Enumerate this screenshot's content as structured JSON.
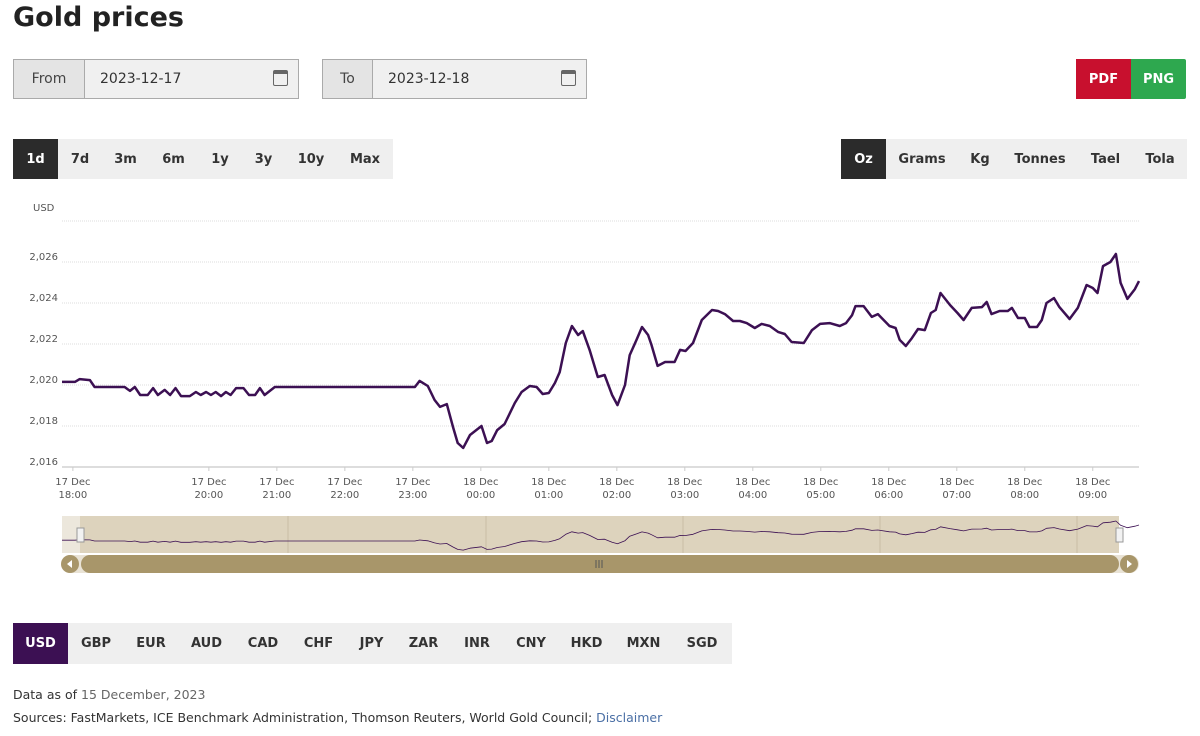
{
  "header": {
    "title": "Gold prices"
  },
  "date_range": {
    "from_label": "From",
    "from": "2023-12-17",
    "to_label": "To",
    "to": "2023-12-18"
  },
  "export": [
    "PDF",
    "PNG"
  ],
  "periods": {
    "options": [
      "1d",
      "7d",
      "3m",
      "6m",
      "1y",
      "3y",
      "10y",
      "Max"
    ],
    "selected": 0
  },
  "units": {
    "options": [
      "Oz",
      "Grams",
      "Kg",
      "Tonnes",
      "Tael",
      "Tola"
    ],
    "selected": 0
  },
  "chart_data": {
    "type": "line",
    "y_label": "USD",
    "color": "#3c1053",
    "grid": true,
    "xlim": [
      17.84,
      33.68
    ],
    "xticks": [
      {
        "value": 18,
        "label": "17 Dec 18:00"
      },
      {
        "value": 20,
        "label": "17 Dec 20:00"
      },
      {
        "value": 21,
        "label": "17 Dec 21:00"
      },
      {
        "value": 22,
        "label": "17 Dec 22:00"
      },
      {
        "value": 23,
        "label": "17 Dec 23:00"
      },
      {
        "value": 24,
        "label": "18 Dec 00:00"
      },
      {
        "value": 25,
        "label": "18 Dec 01:00"
      },
      {
        "value": 26,
        "label": "18 Dec 02:00"
      },
      {
        "value": 27,
        "label": "18 Dec 03:00"
      },
      {
        "value": 28,
        "label": "18 Dec 04:00"
      },
      {
        "value": 29,
        "label": "18 Dec 05:00"
      },
      {
        "value": 30,
        "label": "18 Dec 06:00"
      },
      {
        "value": 31,
        "label": "18 Dec 07:00"
      },
      {
        "value": 32,
        "label": "18 Dec 08:00"
      },
      {
        "value": 33,
        "label": "18 Dec 09:00"
      }
    ],
    "ylim": [
      2016,
      2028
    ],
    "yticks": [
      {
        "value": 2016,
        "label": "2,016"
      },
      {
        "value": 2018,
        "label": "2,018"
      },
      {
        "value": 2020,
        "label": "2,020"
      },
      {
        "value": 2022,
        "label": "2,022"
      },
      {
        "value": 2024,
        "label": "2,024"
      },
      {
        "value": 2026,
        "label": "2,026"
      }
    ],
    "x": [
      17.84,
      18.03,
      18.1,
      18.25,
      18.32,
      18.76,
      18.84,
      18.91,
      18.99,
      19.1,
      19.18,
      19.25,
      19.35,
      19.43,
      19.51,
      19.59,
      19.72,
      19.81,
      19.88,
      19.96,
      20.03,
      20.1,
      20.18,
      20.25,
      20.32,
      20.4,
      20.51,
      20.59,
      20.68,
      20.75,
      20.82,
      20.97,
      23.03,
      23.1,
      23.22,
      23.32,
      23.4,
      23.5,
      23.59,
      23.66,
      23.74,
      23.84,
      24.01,
      24.09,
      24.16,
      24.24,
      24.35,
      24.5,
      24.6,
      24.72,
      24.82,
      24.91,
      25.0,
      25.09,
      25.16,
      25.25,
      25.34,
      25.43,
      25.5,
      25.6,
      25.72,
      25.82,
      25.93,
      26.01,
      26.12,
      26.19,
      26.29,
      26.37,
      26.46,
      26.51,
      26.6,
      26.71,
      26.85,
      26.93,
      27.01,
      27.12,
      27.25,
      27.4,
      27.49,
      27.59,
      27.71,
      27.81,
      27.91,
      28.03,
      28.13,
      28.25,
      28.37,
      28.47,
      28.57,
      28.75,
      28.87,
      28.99,
      29.13,
      29.28,
      29.37,
      29.46,
      29.51,
      29.63,
      29.75,
      29.84,
      30.01,
      30.1,
      30.16,
      30.25,
      30.34,
      30.43,
      30.53,
      30.62,
      30.69,
      30.76,
      30.9,
      31.01,
      31.1,
      31.22,
      31.37,
      31.44,
      31.51,
      31.63,
      31.75,
      31.81,
      31.9,
      32.0,
      32.07,
      32.18,
      32.25,
      32.32,
      32.43,
      32.51,
      32.66,
      32.78,
      32.91,
      33.0,
      33.07,
      33.15,
      33.26,
      33.34,
      33.41,
      33.51,
      33.62,
      33.68
    ],
    "values": [
      2020.15,
      2020.15,
      2020.29,
      2020.24,
      2019.9,
      2019.9,
      2019.71,
      2019.9,
      2019.51,
      2019.51,
      2019.85,
      2019.51,
      2019.76,
      2019.51,
      2019.85,
      2019.46,
      2019.46,
      2019.66,
      2019.51,
      2019.66,
      2019.51,
      2019.66,
      2019.46,
      2019.66,
      2019.51,
      2019.85,
      2019.85,
      2019.51,
      2019.51,
      2019.85,
      2019.51,
      2019.9,
      2019.9,
      2020.2,
      2019.95,
      2019.27,
      2018.93,
      2019.07,
      2017.95,
      2017.17,
      2016.93,
      2017.56,
      2018.0,
      2017.17,
      2017.27,
      2017.8,
      2018.1,
      2019.12,
      2019.66,
      2019.95,
      2019.9,
      2019.56,
      2019.61,
      2020.1,
      2020.63,
      2022.05,
      2022.88,
      2022.44,
      2022.63,
      2021.71,
      2020.39,
      2020.49,
      2019.51,
      2019.02,
      2020.0,
      2021.46,
      2022.2,
      2022.83,
      2022.44,
      2021.95,
      2020.93,
      2021.12,
      2021.12,
      2021.71,
      2021.66,
      2022.05,
      2023.17,
      2023.66,
      2023.61,
      2023.46,
      2023.12,
      2023.12,
      2023.02,
      2022.78,
      2022.98,
      2022.88,
      2022.59,
      2022.49,
      2022.1,
      2022.05,
      2022.68,
      2022.98,
      2023.02,
      2022.88,
      2023.02,
      2023.41,
      2023.85,
      2023.85,
      2023.32,
      2023.46,
      2022.88,
      2022.78,
      2022.2,
      2021.9,
      2022.29,
      2022.73,
      2022.68,
      2023.51,
      2023.66,
      2024.49,
      2023.9,
      2023.51,
      2023.17,
      2023.76,
      2023.8,
      2024.05,
      2023.46,
      2023.61,
      2023.61,
      2023.76,
      2023.27,
      2023.27,
      2022.83,
      2022.83,
      2023.17,
      2024.0,
      2024.24,
      2023.8,
      2023.22,
      2023.76,
      2024.88,
      2024.73,
      2024.49,
      2025.8,
      2026.0,
      2026.39,
      2024.98,
      2024.2,
      2024.68,
      2025.07
    ]
  },
  "currencies": {
    "options": [
      "USD",
      "GBP",
      "EUR",
      "AUD",
      "CAD",
      "CHF",
      "JPY",
      "ZAR",
      "INR",
      "CNY",
      "HKD",
      "MXN",
      "SGD"
    ],
    "selected": 0
  },
  "footer": {
    "as_of_label": "Data as of",
    "as_of": "15 December, 2023",
    "sources": "Sources: FastMarkets, ICE Benchmark Administration, Thomson Reuters, World Gold Council;",
    "disclaimer": "Disclaimer"
  }
}
